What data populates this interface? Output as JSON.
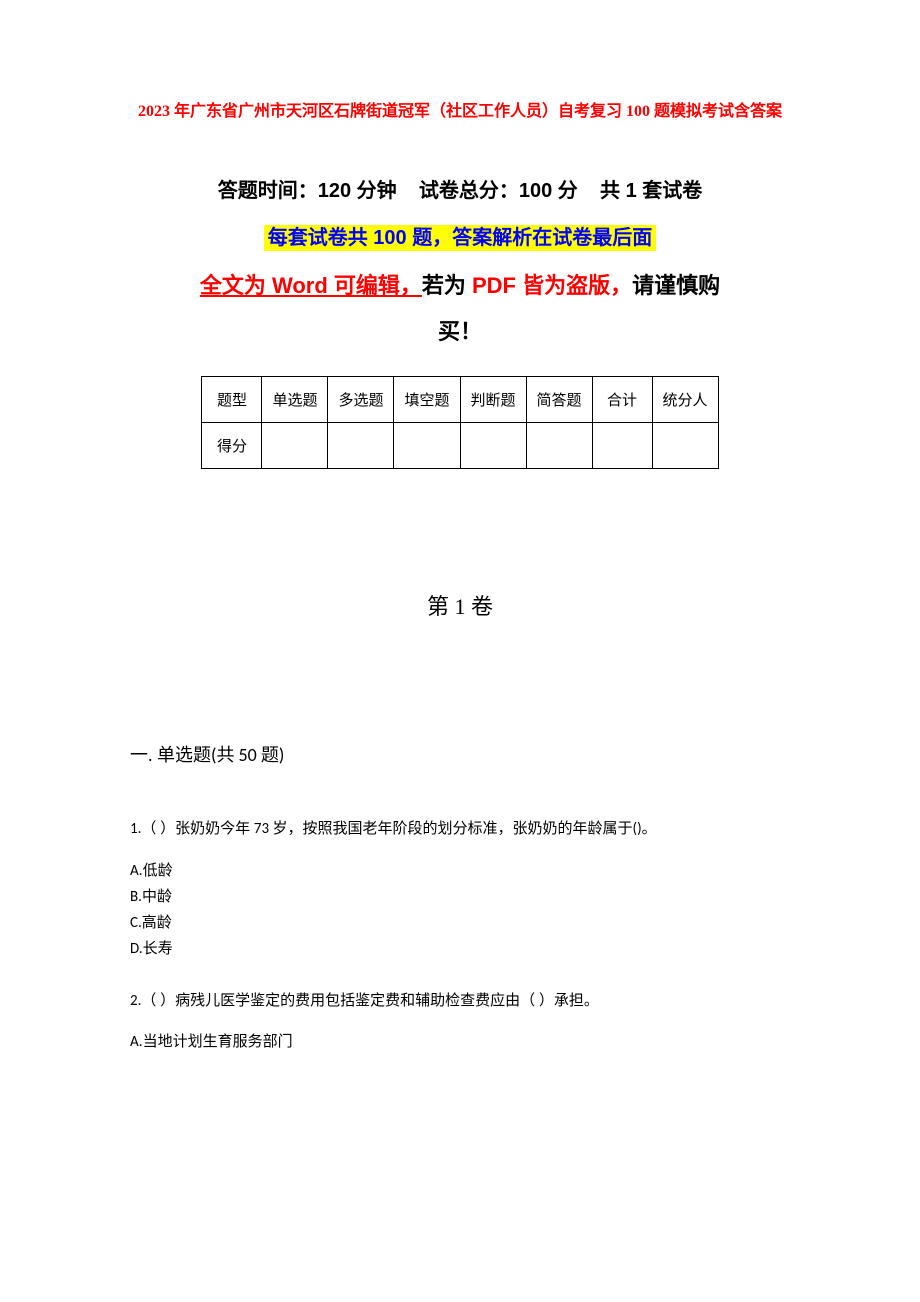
{
  "title": "2023 年广东省广州市天河区石牌街道冠军（社区工作人员）自考复习 100 题模拟考试含答案",
  "info": {
    "time_label": "答题时间：",
    "time_value": "120 分钟",
    "score_label": "试卷总分：",
    "score_value": "100 分",
    "set_label": "共 1 套试卷"
  },
  "highlight": "每套试卷共 100 题，答案解析在试卷最后面",
  "word_line": {
    "prefix": "全文为 Word 可编辑，",
    "mid": "若为 ",
    "pdf": "PDF 皆为盗版，",
    "suffix": "请谨慎购"
  },
  "buy": "买！",
  "table": {
    "row1": [
      "题型",
      "单选题",
      "多选题",
      "填空题",
      "判断题",
      "简答题",
      "合计",
      "统分人"
    ],
    "row2_label": "得分"
  },
  "volume": "第 1 卷",
  "section": {
    "prefix": "一. 单选题",
    "count": "(共 50 题)"
  },
  "q1": {
    "num": "1.",
    "paren": "（ ）",
    "text_a": "张奶奶今年 ",
    "age": "73 ",
    "text_b": "岁，按照我国老年阶段的划分标准，张奶奶的年龄属于",
    "tail": "()",
    "period": "。",
    "options": {
      "a": "A.低龄",
      "b": "B.中龄",
      "c": "C.高龄",
      "d": "D.长寿"
    }
  },
  "q2": {
    "num": "2.",
    "paren": "（ ）",
    "text": "病残儿医学鉴定的费用包括鉴定费和辅助检查费应由（  ）承担。",
    "opt_a": "A.当地计划生育服务部门"
  }
}
